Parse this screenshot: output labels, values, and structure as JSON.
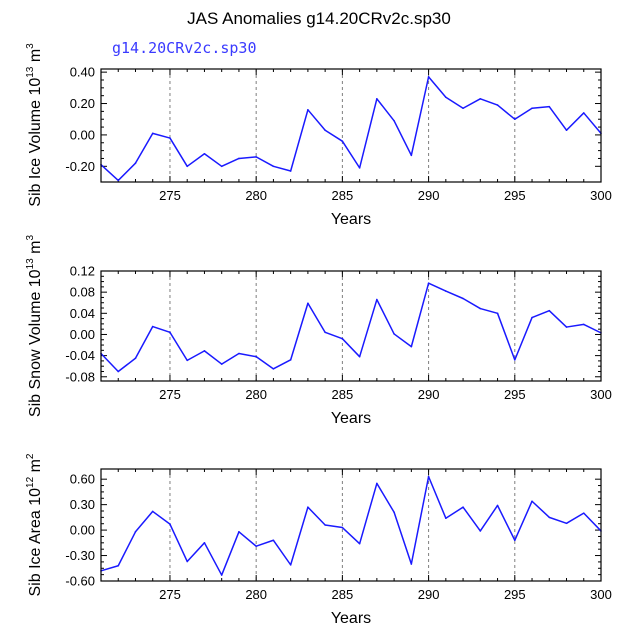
{
  "title": "JAS Anomalies g14.20CRv2c.sp30",
  "subtitle": "g14.20CRv2c.sp30",
  "colors": {
    "line": "#1a1aff",
    "subtitle": "#3a3aff",
    "axis": "#000000",
    "grid": "#7f7f7f"
  },
  "chart_data": [
    {
      "type": "line",
      "ylabel": "Sib Ice Volume 10",
      "ylabel_exp": "13",
      "ylabel_unit": " m",
      "ylabel_unit_exp": "3",
      "xlabel": "Years",
      "xlim": [
        271,
        300
      ],
      "ylim": [
        -0.3,
        0.42
      ],
      "yticks": [
        -0.2,
        0.0,
        0.2,
        0.4
      ],
      "ytick_labels": [
        "-0.20",
        "0.00",
        "0.20",
        "0.40"
      ],
      "xticks": [
        275,
        280,
        285,
        290,
        295,
        300
      ],
      "xtick_labels": [
        "275",
        "280",
        "285",
        "290",
        "295",
        "300"
      ],
      "vlines": [
        275,
        280,
        285,
        290,
        295
      ],
      "series": [
        {
          "name": "Sib Ice Volume",
          "x": [
            271,
            272,
            273,
            274,
            275,
            276,
            277,
            278,
            279,
            280,
            281,
            282,
            283,
            284,
            285,
            286,
            287,
            288,
            289,
            290,
            291,
            292,
            293,
            294,
            295,
            296,
            297,
            298,
            299,
            300
          ],
          "values": [
            -0.19,
            -0.29,
            -0.18,
            0.01,
            -0.02,
            -0.2,
            -0.12,
            -0.2,
            -0.15,
            -0.14,
            -0.2,
            -0.23,
            0.16,
            0.03,
            -0.04,
            -0.21,
            0.23,
            0.09,
            -0.13,
            0.37,
            0.24,
            0.17,
            0.23,
            0.19,
            0.1,
            0.17,
            0.18,
            0.03,
            0.14,
            0.01
          ]
        }
      ]
    },
    {
      "type": "line",
      "ylabel": "Sib Snow Volume 10",
      "ylabel_exp": "13",
      "ylabel_unit": " m",
      "ylabel_unit_exp": "3",
      "xlabel": "Years",
      "xlim": [
        271,
        300
      ],
      "ylim": [
        -0.088,
        0.12
      ],
      "yticks": [
        -0.08,
        -0.04,
        0.0,
        0.04,
        0.08,
        0.12
      ],
      "ytick_labels": [
        "-0.08",
        "-0.04",
        "0.00",
        "0.04",
        "0.08",
        "0.12"
      ],
      "xticks": [
        275,
        280,
        285,
        290,
        295,
        300
      ],
      "xtick_labels": [
        "275",
        "280",
        "285",
        "290",
        "295",
        "300"
      ],
      "vlines": [
        275,
        280,
        285,
        290,
        295
      ],
      "series": [
        {
          "name": "Sib Snow Volume",
          "x": [
            271,
            272,
            273,
            274,
            275,
            276,
            277,
            278,
            279,
            280,
            281,
            282,
            283,
            284,
            285,
            286,
            287,
            288,
            289,
            290,
            291,
            292,
            293,
            294,
            295,
            296,
            297,
            298,
            299,
            300
          ],
          "values": [
            -0.036,
            -0.07,
            -0.045,
            0.015,
            0.004,
            -0.049,
            -0.031,
            -0.056,
            -0.036,
            -0.042,
            -0.065,
            -0.048,
            0.059,
            0.004,
            -0.008,
            -0.042,
            0.066,
            0.001,
            -0.023,
            0.097,
            0.082,
            0.068,
            0.049,
            0.04,
            -0.048,
            0.032,
            0.045,
            0.014,
            0.019,
            0.003
          ]
        }
      ]
    },
    {
      "type": "line",
      "ylabel": "Sib Ice Area 10",
      "ylabel_exp": "12",
      "ylabel_unit": " m",
      "ylabel_unit_exp": "2",
      "xlabel": "Years",
      "xlim": [
        271,
        300
      ],
      "ylim": [
        -0.6,
        0.72
      ],
      "yticks": [
        -0.6,
        -0.3,
        0.0,
        0.3,
        0.6
      ],
      "ytick_labels": [
        "-0.60",
        "-0.30",
        "0.00",
        "0.30",
        "0.60"
      ],
      "xticks": [
        275,
        280,
        285,
        290,
        295,
        300
      ],
      "xtick_labels": [
        "275",
        "280",
        "285",
        "290",
        "295",
        "300"
      ],
      "vlines": [
        275,
        280,
        285,
        290,
        295
      ],
      "series": [
        {
          "name": "Sib Ice Area",
          "x": [
            271,
            272,
            273,
            274,
            275,
            276,
            277,
            278,
            279,
            280,
            281,
            282,
            283,
            284,
            285,
            286,
            287,
            288,
            289,
            290,
            291,
            292,
            293,
            294,
            295,
            296,
            297,
            298,
            299,
            300
          ],
          "values": [
            -0.48,
            -0.42,
            -0.02,
            0.22,
            0.07,
            -0.37,
            -0.15,
            -0.53,
            -0.02,
            -0.19,
            -0.12,
            -0.41,
            0.27,
            0.06,
            0.03,
            -0.16,
            0.55,
            0.21,
            -0.4,
            0.63,
            0.14,
            0.27,
            -0.01,
            0.29,
            -0.12,
            0.34,
            0.15,
            0.08,
            0.2,
            -0.01
          ]
        }
      ]
    }
  ]
}
